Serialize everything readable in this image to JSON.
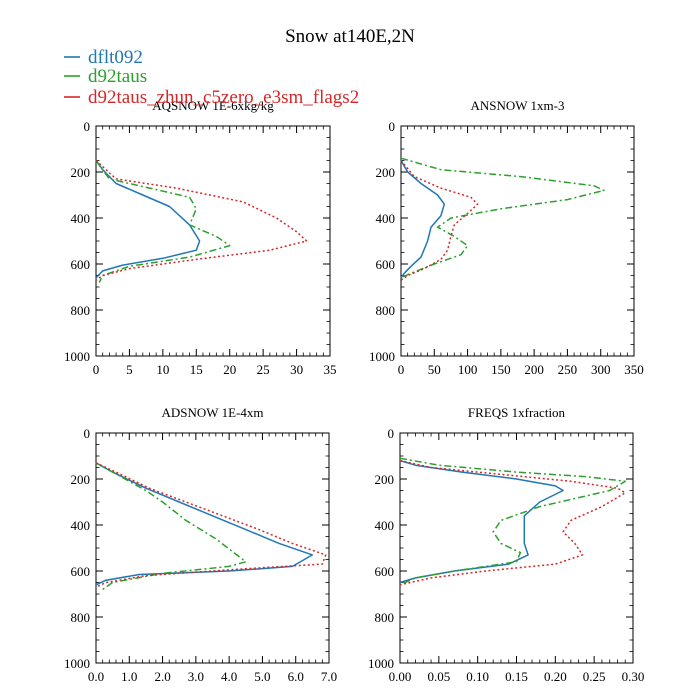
{
  "figure": {
    "title": "Snow at140E,2N"
  },
  "legend": [
    {
      "name": "dflt092",
      "color": "#1f77b4",
      "dash": "solid"
    },
    {
      "name": "d92taus",
      "color": "#2ca02c",
      "dash": "dashdot"
    },
    {
      "name": "d92taus_zhun_c5zero_e3sm_flags2",
      "color": "#d62728",
      "dash": "dotted"
    }
  ],
  "chart_data": [
    {
      "type": "line",
      "title": "AQSNOW 1E-6xkg/kg",
      "xlim": [
        0,
        35
      ],
      "xticks": [
        "0",
        "5",
        "10",
        "15",
        "20",
        "25",
        "30",
        "35"
      ],
      "ylim": [
        1000,
        0
      ],
      "yticks": [
        "0",
        "200",
        "400",
        "600",
        "800",
        "1000"
      ],
      "series": [
        {
          "name": "dflt092",
          "points": [
            [
              0,
              150
            ],
            [
              1,
              190
            ],
            [
              3,
              250
            ],
            [
              7,
              300
            ],
            [
              11,
              350
            ],
            [
              14,
              430
            ],
            [
              15.5,
              500
            ],
            [
              15,
              540
            ],
            [
              10,
              575
            ],
            [
              4,
              605
            ],
            [
              1,
              630
            ],
            [
              0,
              660
            ]
          ]
        },
        {
          "name": "d92taus",
          "points": [
            [
              0,
              150
            ],
            [
              2,
              230
            ],
            [
              8,
              270
            ],
            [
              14,
              310
            ],
            [
              15,
              360
            ],
            [
              14,
              430
            ],
            [
              18,
              480
            ],
            [
              20,
              520
            ],
            [
              14,
              570
            ],
            [
              5,
              610
            ],
            [
              1,
              650
            ],
            [
              0.5,
              680
            ]
          ]
        },
        {
          "name": "d92taus_zhun_c5zero_e3sm_flags2",
          "points": [
            [
              0,
              150
            ],
            [
              3,
              230
            ],
            [
              12,
              270
            ],
            [
              22,
              330
            ],
            [
              27,
              400
            ],
            [
              30,
              460
            ],
            [
              31.5,
              500
            ],
            [
              26,
              540
            ],
            [
              15,
              580
            ],
            [
              5,
              620
            ],
            [
              1,
              650
            ],
            [
              0,
              670
            ]
          ]
        }
      ]
    },
    {
      "type": "line",
      "title": "ANSNOW 1xm-3",
      "xlim": [
        0,
        350
      ],
      "xticks": [
        "0",
        "50",
        "100",
        "150",
        "200",
        "250",
        "300",
        "350"
      ],
      "ylim": [
        1000,
        0
      ],
      "yticks": [
        "0",
        "200",
        "400",
        "600",
        "800",
        "1000"
      ],
      "series": [
        {
          "name": "dflt092",
          "points": [
            [
              0,
              150
            ],
            [
              10,
              200
            ],
            [
              30,
              250
            ],
            [
              55,
              300
            ],
            [
              65,
              340
            ],
            [
              60,
              390
            ],
            [
              45,
              440
            ],
            [
              40,
              500
            ],
            [
              30,
              570
            ],
            [
              15,
              610
            ],
            [
              5,
              640
            ],
            [
              0,
              660
            ]
          ]
        },
        {
          "name": "d92taus",
          "points": [
            [
              0,
              140
            ],
            [
              60,
              190
            ],
            [
              180,
              220
            ],
            [
              290,
              260
            ],
            [
              305,
              280
            ],
            [
              250,
              320
            ],
            [
              150,
              360
            ],
            [
              75,
              400
            ],
            [
              55,
              440
            ],
            [
              80,
              480
            ],
            [
              100,
              520
            ],
            [
              90,
              560
            ],
            [
              50,
              600
            ],
            [
              15,
              640
            ],
            [
              0,
              660
            ]
          ]
        },
        {
          "name": "d92taus_zhun_c5zero_e3sm_flags2",
          "points": [
            [
              0,
              150
            ],
            [
              20,
              220
            ],
            [
              60,
              270
            ],
            [
              105,
              310
            ],
            [
              115,
              340
            ],
            [
              100,
              380
            ],
            [
              80,
              430
            ],
            [
              75,
              480
            ],
            [
              70,
              540
            ],
            [
              60,
              580
            ],
            [
              35,
              620
            ],
            [
              10,
              650
            ],
            [
              0,
              670
            ]
          ]
        }
      ]
    },
    {
      "type": "line",
      "title": "ADSNOW 1E-4xm",
      "xlim": [
        0,
        7
      ],
      "xticks": [
        "0.0",
        "1.0",
        "2.0",
        "3.0",
        "4.0",
        "5.0",
        "6.0",
        "7.0"
      ],
      "ylim": [
        1000,
        0
      ],
      "yticks": [
        "0",
        "200",
        "400",
        "600",
        "800",
        "1000"
      ],
      "series": [
        {
          "name": "dflt092",
          "points": [
            [
              0,
              130
            ],
            [
              0.5,
              170
            ],
            [
              1.5,
              240
            ],
            [
              2.5,
              300
            ],
            [
              3.5,
              360
            ],
            [
              4.5,
              420
            ],
            [
              5.5,
              480
            ],
            [
              6.5,
              530
            ],
            [
              5.9,
              580
            ],
            [
              4.0,
              600
            ],
            [
              1.3,
              615
            ],
            [
              0.3,
              640
            ],
            [
              0,
              660
            ]
          ]
        },
        {
          "name": "d92taus",
          "points": [
            [
              0,
              130
            ],
            [
              0.5,
              170
            ],
            [
              1.5,
              250
            ],
            [
              2,
              300
            ],
            [
              2.7,
              380
            ],
            [
              3.6,
              460
            ],
            [
              4.5,
              560
            ],
            [
              4,
              580
            ],
            [
              2,
              610
            ],
            [
              0.5,
              650
            ],
            [
              0.2,
              680
            ]
          ]
        },
        {
          "name": "d92taus_zhun_c5zero_e3sm_flags2",
          "points": [
            [
              0,
              130
            ],
            [
              0.6,
              170
            ],
            [
              1.6,
              240
            ],
            [
              2.7,
              300
            ],
            [
              3.8,
              360
            ],
            [
              4.9,
              420
            ],
            [
              5.9,
              480
            ],
            [
              6.9,
              530
            ],
            [
              6.8,
              570
            ],
            [
              4.5,
              590
            ],
            [
              1.5,
              620
            ],
            [
              0.3,
              650
            ],
            [
              0,
              670
            ]
          ]
        }
      ]
    },
    {
      "type": "line",
      "title": "FREQS 1xfraction",
      "xlim": [
        0,
        0.3
      ],
      "xticks": [
        "0.00",
        "0.05",
        "0.10",
        "0.15",
        "0.20",
        "0.25",
        "0.30"
      ],
      "ylim": [
        1000,
        0
      ],
      "yticks": [
        "0",
        "200",
        "400",
        "600",
        "800",
        "1000"
      ],
      "series": [
        {
          "name": "dflt092",
          "points": [
            [
              0,
              120
            ],
            [
              0.02,
              140
            ],
            [
              0.08,
              170
            ],
            [
              0.15,
              200
            ],
            [
              0.2,
              230
            ],
            [
              0.21,
              250
            ],
            [
              0.18,
              300
            ],
            [
              0.16,
              360
            ],
            [
              0.16,
              420
            ],
            [
              0.16,
              480
            ],
            [
              0.165,
              530
            ],
            [
              0.14,
              570
            ],
            [
              0.07,
              600
            ],
            [
              0.02,
              630
            ],
            [
              0,
              650
            ]
          ]
        },
        {
          "name": "d92taus",
          "points": [
            [
              0,
              110
            ],
            [
              0.05,
              140
            ],
            [
              0.15,
              170
            ],
            [
              0.24,
              190
            ],
            [
              0.29,
              210
            ],
            [
              0.27,
              250
            ],
            [
              0.18,
              320
            ],
            [
              0.13,
              380
            ],
            [
              0.12,
              430
            ],
            [
              0.13,
              480
            ],
            [
              0.155,
              520
            ],
            [
              0.15,
              560
            ],
            [
              0.07,
              600
            ],
            [
              0.02,
              630
            ],
            [
              0,
              660
            ]
          ]
        },
        {
          "name": "d92taus_zhun_c5zero_e3sm_flags2",
          "points": [
            [
              0,
              120
            ],
            [
              0.04,
              150
            ],
            [
              0.13,
              180
            ],
            [
              0.22,
              210
            ],
            [
              0.28,
              240
            ],
            [
              0.29,
              260
            ],
            [
              0.26,
              320
            ],
            [
              0.22,
              380
            ],
            [
              0.21,
              430
            ],
            [
              0.225,
              480
            ],
            [
              0.235,
              530
            ],
            [
              0.2,
              570
            ],
            [
              0.11,
              600
            ],
            [
              0.04,
              630
            ],
            [
              0,
              660
            ]
          ]
        }
      ]
    }
  ]
}
